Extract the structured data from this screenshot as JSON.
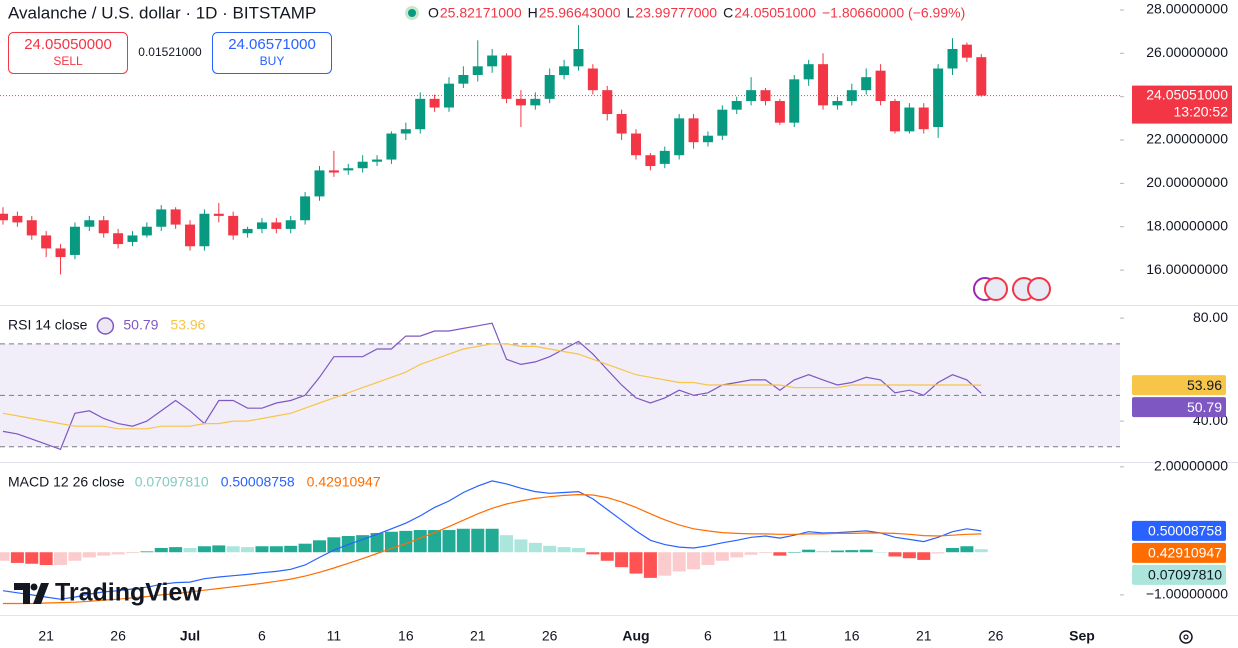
{
  "chart_data": {
    "type": "candlestick",
    "title": "Avalanche / U.S. dollar · 1D · BITSTAMP",
    "header": {
      "ohlc": [
        {
          "label": "O",
          "value": "25.82171000"
        },
        {
          "label": "H",
          "value": "25.96643000"
        },
        {
          "label": "L",
          "value": "23.99777000"
        },
        {
          "label": "C",
          "value": "24.05051000"
        }
      ],
      "change": "−1.80660000 (−6.99%)"
    },
    "trade": {
      "sell_price": "24.05050000",
      "sell": "SELL",
      "spread": "0.01521000",
      "buy_price": "24.06571000",
      "buy": "BUY"
    },
    "watermark": "TradingView",
    "categories": [
      null,
      null,
      null,
      "21",
      null,
      null,
      null,
      null,
      "26",
      null,
      null,
      null,
      null,
      "Jul",
      null,
      null,
      null,
      null,
      "6",
      null,
      null,
      null,
      null,
      "11",
      null,
      null,
      null,
      null,
      "16",
      null,
      null,
      null,
      null,
      "21",
      null,
      null,
      null,
      null,
      "26",
      null,
      null,
      null,
      null,
      null,
      "Aug",
      null,
      null,
      null,
      null,
      "6",
      null,
      null,
      null,
      null,
      "11",
      null,
      null,
      null,
      null,
      "16",
      null,
      null,
      null,
      null,
      "21",
      null,
      null,
      null,
      null,
      "26",
      null,
      null,
      null,
      null,
      null,
      "Sep"
    ],
    "open": [
      18.6,
      18.5,
      18.3,
      17.6,
      17.0,
      16.7,
      18.0,
      18.3,
      17.7,
      17.3,
      17.6,
      18.0,
      18.8,
      18.1,
      17.1,
      18.6,
      18.5,
      17.7,
      17.9,
      18.2,
      17.9,
      18.3,
      19.4,
      20.6,
      20.6,
      20.7,
      21.0,
      21.1,
      22.3,
      22.5,
      23.9,
      23.5,
      24.6,
      25.0,
      25.4,
      25.9,
      23.9,
      23.6,
      23.9,
      25.0,
      25.4,
      25.3,
      24.3,
      23.2,
      22.3,
      21.3,
      20.9,
      21.3,
      23.0,
      21.9,
      22.2,
      23.4,
      23.8,
      24.3,
      23.8,
      22.8,
      24.8,
      25.5,
      23.6,
      23.8,
      24.3,
      25.2,
      23.8,
      22.4,
      23.5,
      22.6,
      25.3,
      26.4,
      25.82171,
      null,
      null,
      null,
      null,
      null,
      null,
      null
    ],
    "high": [
      18.9,
      18.7,
      18.5,
      17.8,
      17.2,
      18.2,
      18.5,
      18.5,
      17.9,
      17.8,
      18.2,
      19.0,
      18.9,
      18.3,
      18.8,
      19.1,
      18.7,
      18.0,
      18.4,
      18.4,
      18.5,
      19.6,
      20.8,
      21.5,
      20.9,
      21.3,
      21.3,
      22.4,
      22.8,
      24.2,
      24.1,
      24.9,
      25.4,
      26.6,
      26.2,
      26.0,
      24.3,
      24.2,
      25.3,
      25.7,
      27.3,
      25.5,
      24.5,
      23.4,
      22.5,
      21.4,
      21.7,
      23.2,
      23.2,
      22.4,
      23.6,
      24.0,
      24.9,
      24.4,
      23.9,
      25.0,
      25.7,
      26.0,
      24.0,
      24.6,
      25.3,
      25.5,
      23.9,
      23.7,
      23.7,
      25.5,
      26.7,
      26.5,
      25.96643,
      null,
      null,
      null,
      null,
      null,
      null,
      null
    ],
    "low": [
      18.1,
      18.0,
      17.4,
      16.6,
      15.8,
      16.5,
      17.8,
      17.5,
      17.0,
      17.1,
      17.5,
      17.8,
      17.9,
      16.9,
      16.9,
      18.2,
      17.4,
      17.5,
      17.7,
      17.7,
      17.7,
      18.1,
      19.2,
      20.3,
      20.4,
      20.5,
      20.8,
      20.9,
      22.0,
      22.3,
      23.3,
      23.3,
      24.4,
      24.7,
      25.1,
      23.7,
      22.6,
      23.4,
      23.7,
      24.8,
      25.2,
      24.1,
      22.9,
      22.0,
      21.1,
      20.6,
      20.7,
      21.1,
      21.6,
      21.7,
      22.0,
      23.2,
      23.6,
      23.6,
      22.7,
      22.6,
      24.5,
      23.4,
      23.4,
      23.6,
      24.1,
      23.6,
      22.3,
      22.3,
      22.3,
      22.1,
      25.0,
      25.6,
      23.99777,
      null,
      null,
      null,
      null,
      null,
      null,
      null
    ],
    "close": [
      18.3,
      18.2,
      17.6,
      17.0,
      16.6,
      18.0,
      18.3,
      17.7,
      17.2,
      17.6,
      18.0,
      18.8,
      18.1,
      17.1,
      18.6,
      18.5,
      17.6,
      17.9,
      18.2,
      17.9,
      18.3,
      19.4,
      20.6,
      20.5,
      20.7,
      21.0,
      21.1,
      22.3,
      22.5,
      23.9,
      23.5,
      24.6,
      25.0,
      25.4,
      25.9,
      23.9,
      23.6,
      23.9,
      25.0,
      25.4,
      26.2,
      24.3,
      23.2,
      22.3,
      21.3,
      20.8,
      21.5,
      23.0,
      21.9,
      22.2,
      23.4,
      23.8,
      24.3,
      23.8,
      22.8,
      24.8,
      25.5,
      23.6,
      23.8,
      24.3,
      24.9,
      23.8,
      22.4,
      23.5,
      22.5,
      25.3,
      26.2,
      25.8,
      24.05051,
      null,
      null,
      null,
      null,
      null,
      null,
      null
    ],
    "last_close_label": "24.05051000",
    "countdown": "13:20:52",
    "up_color": "#089981",
    "down_color": "#f23645",
    "ylim": [
      14.39,
      28.46
    ],
    "yticks": [
      {
        "value": 16,
        "label": "16.00000000"
      },
      {
        "value": 18,
        "label": "18.00000000"
      },
      {
        "value": 20,
        "label": "20.00000000"
      },
      {
        "value": 22,
        "label": "22.00000000"
      },
      {
        "value": 24,
        "label": "24.00000000"
      },
      {
        "value": 26,
        "label": "26.00000000"
      },
      {
        "value": 28,
        "label": "28.00000000"
      }
    ],
    "grid": false,
    "panels": [
      {
        "type": "line",
        "legend": "RSI 14 close",
        "ylim": [
          24.1,
          84.7
        ],
        "yticks": [
          {
            "value": 40,
            "label": "40.00"
          },
          {
            "value": 80,
            "label": "80.00"
          }
        ],
        "levels": [
          70,
          50,
          30
        ],
        "band_color": "#7e57c2",
        "series": [
          {
            "color": "#7e57c2",
            "values": [
              36,
              35,
              33,
              31,
              29,
              43,
              44,
              41,
              39,
              38,
              40,
              44,
              48,
              44,
              39,
              48,
              48,
              45,
              45,
              47,
              48,
              50,
              57,
              65,
              65,
              65,
              68,
              68,
              73,
              73,
              75,
              75,
              76,
              77,
              78,
              64,
              62,
              63,
              65,
              68,
              71,
              66,
              60,
              54,
              49,
              47,
              49,
              52,
              50,
              51,
              54,
              55,
              56,
              56,
              52,
              56,
              58,
              56,
              54,
              55,
              57,
              56,
              51,
              52,
              50,
              55,
              58,
              56,
              50.79,
              null,
              null,
              null,
              null,
              null,
              null,
              null
            ]
          },
          {
            "color": "#f7c548",
            "values": [
              43,
              42,
              41,
              40,
              39,
              38,
              38,
              38,
              37,
              37,
              37,
              38,
              38,
              38,
              39,
              39,
              40,
              40,
              41,
              42,
              43,
              45,
              47,
              49,
              51,
              53,
              55,
              57,
              59,
              62,
              64,
              66,
              68,
              69,
              70,
              70,
              69,
              69,
              68,
              67,
              66,
              64,
              62,
              60,
              58,
              57,
              56,
              55,
              55,
              54,
              54,
              54,
              54,
              54,
              54,
              53,
              53,
              53,
              53,
              54,
              54,
              54,
              54,
              54,
              54,
              54,
              54,
              54,
              53.96,
              null,
              null,
              null,
              null,
              null,
              null,
              null
            ]
          }
        ]
      },
      {
        "type": "macd",
        "legend": "MACD 12 26 close",
        "ylim": [
          -1.47,
          2.09
        ],
        "yticks": [
          {
            "value": -1,
            "label": "−1.00000000"
          },
          {
            "value": 2,
            "label": "2.00000000"
          }
        ],
        "histogram": {
          "colors": [
            "#22ab94",
            "#ace5dc",
            "#ff5252",
            "#fccbcd"
          ],
          "last_label": "0.07097810",
          "values": [
            -0.2,
            -0.25,
            -0.27,
            -0.3,
            -0.3,
            -0.2,
            -0.12,
            -0.08,
            -0.05,
            -0.02,
            0.02,
            0.1,
            0.12,
            0.1,
            0.14,
            0.16,
            0.14,
            0.12,
            0.14,
            0.14,
            0.15,
            0.2,
            0.28,
            0.35,
            0.38,
            0.4,
            0.45,
            0.48,
            0.5,
            0.52,
            0.52,
            0.52,
            0.55,
            0.55,
            0.55,
            0.4,
            0.3,
            0.22,
            0.15,
            0.12,
            0.1,
            -0.05,
            -0.2,
            -0.35,
            -0.5,
            -0.6,
            -0.55,
            -0.45,
            -0.4,
            -0.3,
            -0.2,
            -0.12,
            -0.06,
            -0.02,
            -0.08,
            0.0,
            0.06,
            0.03,
            0.04,
            0.05,
            0.06,
            0.0,
            -0.1,
            -0.14,
            -0.18,
            -0.03,
            0.1,
            0.14,
            0.0709781,
            null,
            null,
            null,
            null,
            null,
            null,
            null
          ]
        },
        "series": [
          {
            "color": "#2962ff",
            "values": [
              -0.9,
              -0.95,
              -1.0,
              -1.05,
              -1.1,
              -1.05,
              -0.98,
              -0.93,
              -0.9,
              -0.86,
              -0.82,
              -0.75,
              -0.71,
              -0.7,
              -0.62,
              -0.58,
              -0.55,
              -0.52,
              -0.48,
              -0.45,
              -0.4,
              -0.3,
              -0.12,
              0.05,
              0.18,
              0.3,
              0.42,
              0.55,
              0.68,
              0.85,
              1.05,
              1.2,
              1.4,
              1.55,
              1.67,
              1.6,
              1.5,
              1.42,
              1.38,
              1.4,
              1.42,
              1.25,
              1.0,
              0.75,
              0.5,
              0.28,
              0.18,
              0.12,
              0.1,
              0.15,
              0.22,
              0.28,
              0.35,
              0.38,
              0.33,
              0.4,
              0.48,
              0.45,
              0.46,
              0.48,
              0.5,
              0.45,
              0.35,
              0.3,
              0.25,
              0.35,
              0.48,
              0.55,
              0.50008758,
              null,
              null,
              null,
              null,
              null,
              null,
              null
            ]
          },
          {
            "color": "#ff6d00",
            "values": [
              -1.2,
              -1.2,
              -1.2,
              -1.19,
              -1.18,
              -1.17,
              -1.15,
              -1.12,
              -1.1,
              -1.07,
              -1.04,
              -1.0,
              -0.97,
              -0.93,
              -0.89,
              -0.85,
              -0.81,
              -0.77,
              -0.73,
              -0.68,
              -0.63,
              -0.56,
              -0.47,
              -0.37,
              -0.26,
              -0.15,
              -0.03,
              0.09,
              0.2,
              0.33,
              0.46,
              0.6,
              0.75,
              0.9,
              1.03,
              1.13,
              1.2,
              1.26,
              1.3,
              1.33,
              1.35,
              1.34,
              1.28,
              1.18,
              1.05,
              0.9,
              0.76,
              0.64,
              0.55,
              0.5,
              0.46,
              0.44,
              0.43,
              0.43,
              0.42,
              0.42,
              0.43,
              0.43,
              0.44,
              0.44,
              0.45,
              0.45,
              0.44,
              0.42,
              0.39,
              0.38,
              0.4,
              0.42,
              0.42910947,
              null,
              null,
              null,
              null,
              null,
              null,
              null
            ]
          }
        ]
      }
    ]
  }
}
